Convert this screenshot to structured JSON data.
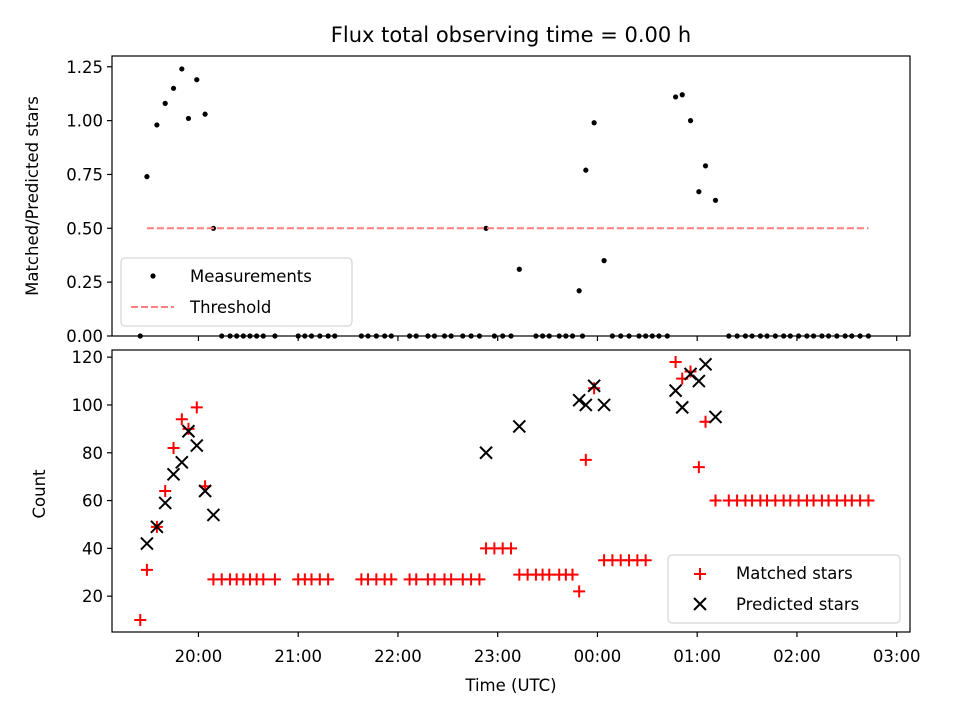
{
  "chart_data": {
    "title": "Flux total observing time = 0.00 h",
    "x_axis": {
      "label": "Time (UTC)",
      "range": [
        "19:08",
        "03:08"
      ],
      "tick_labels": [
        "20:00",
        "21:00",
        "22:00",
        "23:00",
        "00:00",
        "01:00",
        "02:00",
        "03:00"
      ]
    },
    "panels": [
      {
        "type": "scatter",
        "ylabel": "Matched/Predicted stars",
        "ylim": [
          0,
          1.3
        ],
        "y_ticks": [
          "0.00",
          "0.25",
          "0.50",
          "0.75",
          "1.00",
          "1.25"
        ],
        "legend_position": "lower-left",
        "series": [
          {
            "name": "Measurements",
            "marker": "dot",
            "color": "#000000",
            "points": [
              [
                "19:25",
                0.0
              ],
              [
                "19:29",
                0.74
              ],
              [
                "19:35",
                0.98
              ],
              [
                "19:40",
                1.08
              ],
              [
                "19:45",
                1.15
              ],
              [
                "19:50",
                1.24
              ],
              [
                "19:54",
                1.01
              ],
              [
                "19:59",
                1.19
              ],
              [
                "20:04",
                1.03
              ],
              [
                "20:09",
                0.5
              ],
              [
                "20:14",
                0.0
              ],
              [
                "20:19",
                0.0
              ],
              [
                "20:23",
                0.0
              ],
              [
                "20:27",
                0.0
              ],
              [
                "20:31",
                0.0
              ],
              [
                "20:35",
                0.0
              ],
              [
                "20:39",
                0.0
              ],
              [
                "20:46",
                0.0
              ],
              [
                "21:00",
                0.0
              ],
              [
                "21:04",
                0.0
              ],
              [
                "21:08",
                0.0
              ],
              [
                "21:13",
                0.0
              ],
              [
                "21:18",
                0.0
              ],
              [
                "21:22",
                0.0
              ],
              [
                "21:38",
                0.0
              ],
              [
                "21:42",
                0.0
              ],
              [
                "21:47",
                0.0
              ],
              [
                "21:52",
                0.0
              ],
              [
                "21:56",
                0.0
              ],
              [
                "22:07",
                0.0
              ],
              [
                "22:11",
                0.0
              ],
              [
                "22:18",
                0.0
              ],
              [
                "22:22",
                0.0
              ],
              [
                "22:28",
                0.0
              ],
              [
                "22:32",
                0.0
              ],
              [
                "22:39",
                0.0
              ],
              [
                "22:44",
                0.0
              ],
              [
                "22:49",
                0.0
              ],
              [
                "22:53",
                0.5
              ],
              [
                "22:58",
                0.0
              ],
              [
                "23:03",
                0.0
              ],
              [
                "23:08",
                0.0
              ],
              [
                "23:13",
                0.31
              ],
              [
                "23:23",
                0.0
              ],
              [
                "23:27",
                0.0
              ],
              [
                "23:31",
                0.0
              ],
              [
                "23:37",
                0.0
              ],
              [
                "23:41",
                0.0
              ],
              [
                "23:45",
                0.0
              ],
              [
                "23:51",
                0.0
              ],
              [
                "23:49",
                0.21
              ],
              [
                "23:53",
                0.77
              ],
              [
                "23:58",
                0.99
              ],
              [
                "00:04",
                0.35
              ],
              [
                "00:09",
                0.0
              ],
              [
                "00:14",
                0.0
              ],
              [
                "00:19",
                0.0
              ],
              [
                "00:25",
                0.0
              ],
              [
                "00:29",
                0.0
              ],
              [
                "00:33",
                0.0
              ],
              [
                "00:37",
                0.0
              ],
              [
                "00:42",
                0.0
              ],
              [
                "00:47",
                1.11
              ],
              [
                "00:51",
                1.12
              ],
              [
                "00:56",
                1.0
              ],
              [
                "01:01",
                0.67
              ],
              [
                "01:05",
                0.79
              ],
              [
                "01:11",
                0.63
              ],
              [
                "01:19",
                0.0
              ],
              [
                "01:24",
                0.0
              ],
              [
                "01:29",
                0.0
              ],
              [
                "01:33",
                0.0
              ],
              [
                "01:38",
                0.0
              ],
              [
                "01:42",
                0.0
              ],
              [
                "01:47",
                0.0
              ],
              [
                "01:52",
                0.0
              ],
              [
                "01:56",
                0.0
              ],
              [
                "02:01",
                0.0
              ],
              [
                "02:06",
                0.0
              ],
              [
                "02:10",
                0.0
              ],
              [
                "02:15",
                0.0
              ],
              [
                "02:19",
                0.0
              ],
              [
                "02:24",
                0.0
              ],
              [
                "02:29",
                0.0
              ],
              [
                "02:33",
                0.0
              ],
              [
                "02:38",
                0.0
              ],
              [
                "02:43",
                0.0
              ]
            ]
          },
          {
            "name": "Threshold",
            "marker": "dashed-line",
            "color": "#ff7f7f",
            "points": [
              [
                "19:29",
                0.5
              ],
              [
                "02:43",
                0.5
              ]
            ]
          }
        ]
      },
      {
        "type": "scatter",
        "ylabel": "Count",
        "ylim": [
          5,
          123
        ],
        "y_ticks": [
          "20",
          "40",
          "60",
          "80",
          "100",
          "120"
        ],
        "legend_position": "lower-right",
        "series": [
          {
            "name": "Matched stars",
            "marker": "plus",
            "color": "#ff0000",
            "points": [
              [
                "19:25",
                10
              ],
              [
                "19:29",
                31
              ],
              [
                "19:35",
                49
              ],
              [
                "19:40",
                64
              ],
              [
                "19:45",
                82
              ],
              [
                "19:50",
                94
              ],
              [
                "19:54",
                90
              ],
              [
                "19:59",
                99
              ],
              [
                "20:04",
                66
              ],
              [
                "20:09",
                27
              ],
              [
                "20:14",
                27
              ],
              [
                "20:19",
                27
              ],
              [
                "20:23",
                27
              ],
              [
                "20:27",
                27
              ],
              [
                "20:31",
                27
              ],
              [
                "20:35",
                27
              ],
              [
                "20:39",
                27
              ],
              [
                "20:46",
                27
              ],
              [
                "21:00",
                27
              ],
              [
                "21:04",
                27
              ],
              [
                "21:08",
                27
              ],
              [
                "21:13",
                27
              ],
              [
                "21:18",
                27
              ],
              [
                "21:38",
                27
              ],
              [
                "21:42",
                27
              ],
              [
                "21:47",
                27
              ],
              [
                "21:52",
                27
              ],
              [
                "21:56",
                27
              ],
              [
                "22:07",
                27
              ],
              [
                "22:11",
                27
              ],
              [
                "22:18",
                27
              ],
              [
                "22:22",
                27
              ],
              [
                "22:28",
                27
              ],
              [
                "22:32",
                27
              ],
              [
                "22:39",
                27
              ],
              [
                "22:44",
                27
              ],
              [
                "22:49",
                27
              ],
              [
                "22:53",
                40
              ],
              [
                "22:58",
                40
              ],
              [
                "23:03",
                40
              ],
              [
                "23:08",
                40
              ],
              [
                "23:13",
                29
              ],
              [
                "23:18",
                29
              ],
              [
                "23:23",
                29
              ],
              [
                "23:27",
                29
              ],
              [
                "23:31",
                29
              ],
              [
                "23:37",
                29
              ],
              [
                "23:41",
                29
              ],
              [
                "23:45",
                29
              ],
              [
                "23:49",
                22
              ],
              [
                "23:53",
                77
              ],
              [
                "23:58",
                107
              ],
              [
                "00:04",
                35
              ],
              [
                "00:09",
                35
              ],
              [
                "00:14",
                35
              ],
              [
                "00:19",
                35
              ],
              [
                "00:24",
                35
              ],
              [
                "00:29",
                35
              ],
              [
                "00:47",
                118
              ],
              [
                "00:51",
                111
              ],
              [
                "00:56",
                114
              ],
              [
                "01:01",
                74
              ],
              [
                "01:05",
                93
              ],
              [
                "01:11",
                60
              ],
              [
                "01:19",
                60
              ],
              [
                "01:24",
                60
              ],
              [
                "01:29",
                60
              ],
              [
                "01:33",
                60
              ],
              [
                "01:38",
                60
              ],
              [
                "01:42",
                60
              ],
              [
                "01:47",
                60
              ],
              [
                "01:52",
                60
              ],
              [
                "01:56",
                60
              ],
              [
                "02:01",
                60
              ],
              [
                "02:06",
                60
              ],
              [
                "02:10",
                60
              ],
              [
                "02:15",
                60
              ],
              [
                "02:19",
                60
              ],
              [
                "02:24",
                60
              ],
              [
                "02:29",
                60
              ],
              [
                "02:33",
                60
              ],
              [
                "02:38",
                60
              ],
              [
                "02:43",
                60
              ]
            ]
          },
          {
            "name": "Predicted stars",
            "marker": "x",
            "color": "#000000",
            "points": [
              [
                "19:29",
                42
              ],
              [
                "19:35",
                49
              ],
              [
                "19:40",
                59
              ],
              [
                "19:45",
                71
              ],
              [
                "19:50",
                76
              ],
              [
                "19:54",
                89
              ],
              [
                "19:59",
                83
              ],
              [
                "20:04",
                64
              ],
              [
                "20:09",
                54
              ],
              [
                "22:53",
                80
              ],
              [
                "23:13",
                91
              ],
              [
                "23:49",
                102
              ],
              [
                "23:53",
                100
              ],
              [
                "23:58",
                108
              ],
              [
                "00:04",
                100
              ],
              [
                "00:47",
                106
              ],
              [
                "00:51",
                99
              ],
              [
                "00:56",
                113
              ],
              [
                "01:01",
                110
              ],
              [
                "01:05",
                117
              ],
              [
                "01:11",
                95
              ]
            ]
          }
        ]
      }
    ]
  }
}
